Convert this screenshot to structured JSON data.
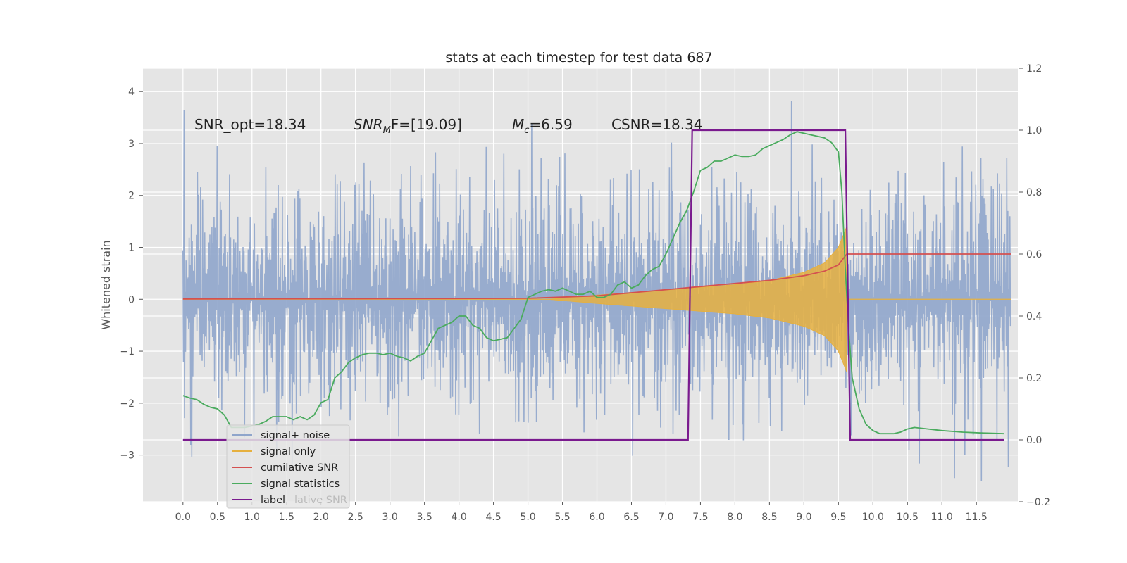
{
  "chart_data": {
    "type": "line",
    "title": "stats at each timestep for test data 687",
    "xlabel": "",
    "ylabel": "Whitened strain",
    "xlim": [
      -0.58,
      12.1
    ],
    "ylim": [
      -3.9,
      4.45
    ],
    "y2lim": [
      -0.2,
      1.2
    ],
    "grid": true,
    "background": "#e5e5e5",
    "x_ticks": [
      "0.0",
      "0.5",
      "1.0",
      "1.5",
      "2.0",
      "2.5",
      "3.0",
      "3.5",
      "4.0",
      "4.5",
      "5.0",
      "5.5",
      "6.0",
      "6.5",
      "7.0",
      "7.5",
      "8.0",
      "8.5",
      "9.0",
      "9.5",
      "10.0",
      "10.5",
      "11.0",
      "11.5"
    ],
    "y_ticks": [
      "4",
      "3",
      "2",
      "1",
      "0",
      "−1",
      "−2",
      "−3"
    ],
    "y2_ticks": [
      "1.2",
      "1.0",
      "0.8",
      "0.6",
      "0.4",
      "0.2",
      "0.0",
      "−0.2"
    ],
    "annotations": {
      "snr_opt": "SNR_opt=18.34",
      "snr_mf_base": "SNR",
      "snr_mf_sub": "M",
      "snr_mf_rest": "F=[19.09]",
      "mc_base": "M",
      "mc_sub": "c",
      "mc_rest": "=6.59",
      "csnr": "CSNR=18.34"
    },
    "series": [
      {
        "name": "signal+ noise",
        "axis": "left",
        "color": "#8fa5cb",
        "description_values": "gaussian noise, amplitude ~1, x from 0.0 to 12.0",
        "x_range": [
          0.0,
          12.0
        ],
        "noise_sigma": 1.0
      },
      {
        "name": "signal only",
        "axis": "left",
        "color": "#e6b03f",
        "chirp_start": 5.3,
        "chirp_end": 9.62,
        "envelope": [
          [
            5.3,
            0.0
          ],
          [
            6.0,
            0.08
          ],
          [
            7.0,
            0.18
          ],
          [
            8.0,
            0.28
          ],
          [
            8.5,
            0.36
          ],
          [
            9.0,
            0.52
          ],
          [
            9.3,
            0.7
          ],
          [
            9.5,
            1.0
          ],
          [
            9.62,
            1.4
          ]
        ]
      },
      {
        "name": "cumilative SNR",
        "axis": "right",
        "color": "#d45050",
        "points": [
          [
            0.0,
            0.455
          ],
          [
            3.0,
            0.456
          ],
          [
            5.0,
            0.457
          ],
          [
            6.0,
            0.465
          ],
          [
            6.5,
            0.475
          ],
          [
            7.0,
            0.485
          ],
          [
            7.5,
            0.495
          ],
          [
            8.0,
            0.505
          ],
          [
            8.5,
            0.515
          ],
          [
            9.0,
            0.53
          ],
          [
            9.3,
            0.545
          ],
          [
            9.5,
            0.565
          ],
          [
            9.62,
            0.6
          ],
          [
            12.0,
            0.6
          ]
        ]
      },
      {
        "name": "signal statistics",
        "axis": "right",
        "color": "#4aab5e",
        "points": [
          [
            0.0,
            0.143
          ],
          [
            0.1,
            0.135
          ],
          [
            0.2,
            0.13
          ],
          [
            0.3,
            0.115
          ],
          [
            0.4,
            0.105
          ],
          [
            0.5,
            0.1
          ],
          [
            0.6,
            0.08
          ],
          [
            0.7,
            0.04
          ],
          [
            0.8,
            0.04
          ],
          [
            0.9,
            0.04
          ],
          [
            1.0,
            0.045
          ],
          [
            1.1,
            0.05
          ],
          [
            1.2,
            0.06
          ],
          [
            1.3,
            0.075
          ],
          [
            1.4,
            0.075
          ],
          [
            1.5,
            0.075
          ],
          [
            1.6,
            0.065
          ],
          [
            1.7,
            0.075
          ],
          [
            1.8,
            0.065
          ],
          [
            1.9,
            0.08
          ],
          [
            2.0,
            0.12
          ],
          [
            2.1,
            0.13
          ],
          [
            2.2,
            0.2
          ],
          [
            2.3,
            0.22
          ],
          [
            2.4,
            0.25
          ],
          [
            2.5,
            0.265
          ],
          [
            2.6,
            0.275
          ],
          [
            2.7,
            0.28
          ],
          [
            2.8,
            0.28
          ],
          [
            2.9,
            0.275
          ],
          [
            3.0,
            0.28
          ],
          [
            3.1,
            0.27
          ],
          [
            3.2,
            0.265
          ],
          [
            3.3,
            0.255
          ],
          [
            3.4,
            0.27
          ],
          [
            3.5,
            0.28
          ],
          [
            3.6,
            0.32
          ],
          [
            3.7,
            0.36
          ],
          [
            3.8,
            0.37
          ],
          [
            3.9,
            0.38
          ],
          [
            4.0,
            0.4
          ],
          [
            4.1,
            0.4
          ],
          [
            4.2,
            0.37
          ],
          [
            4.3,
            0.36
          ],
          [
            4.4,
            0.33
          ],
          [
            4.5,
            0.32
          ],
          [
            4.6,
            0.325
          ],
          [
            4.7,
            0.33
          ],
          [
            4.8,
            0.36
          ],
          [
            4.9,
            0.39
          ],
          [
            5.0,
            0.46
          ],
          [
            5.1,
            0.47
          ],
          [
            5.2,
            0.48
          ],
          [
            5.3,
            0.485
          ],
          [
            5.4,
            0.48
          ],
          [
            5.5,
            0.49
          ],
          [
            5.6,
            0.48
          ],
          [
            5.7,
            0.47
          ],
          [
            5.8,
            0.47
          ],
          [
            5.9,
            0.48
          ],
          [
            6.0,
            0.46
          ],
          [
            6.1,
            0.46
          ],
          [
            6.2,
            0.47
          ],
          [
            6.3,
            0.5
          ],
          [
            6.4,
            0.51
          ],
          [
            6.5,
            0.49
          ],
          [
            6.6,
            0.5
          ],
          [
            6.7,
            0.53
          ],
          [
            6.8,
            0.55
          ],
          [
            6.9,
            0.56
          ],
          [
            7.0,
            0.6
          ],
          [
            7.1,
            0.65
          ],
          [
            7.2,
            0.7
          ],
          [
            7.3,
            0.74
          ],
          [
            7.4,
            0.8
          ],
          [
            7.5,
            0.87
          ],
          [
            7.6,
            0.88
          ],
          [
            7.7,
            0.9
          ],
          [
            7.8,
            0.9
          ],
          [
            7.9,
            0.91
          ],
          [
            8.0,
            0.92
          ],
          [
            8.1,
            0.915
          ],
          [
            8.2,
            0.915
          ],
          [
            8.3,
            0.92
          ],
          [
            8.4,
            0.94
          ],
          [
            8.5,
            0.95
          ],
          [
            8.6,
            0.96
          ],
          [
            8.7,
            0.97
          ],
          [
            8.8,
            0.985
          ],
          [
            8.9,
            0.995
          ],
          [
            9.0,
            0.99
          ],
          [
            9.1,
            0.985
          ],
          [
            9.2,
            0.98
          ],
          [
            9.3,
            0.975
          ],
          [
            9.4,
            0.96
          ],
          [
            9.5,
            0.93
          ],
          [
            9.55,
            0.8
          ],
          [
            9.6,
            0.55
          ],
          [
            9.65,
            0.35
          ],
          [
            9.7,
            0.2
          ],
          [
            9.8,
            0.1
          ],
          [
            9.9,
            0.05
          ],
          [
            10.0,
            0.03
          ],
          [
            10.1,
            0.02
          ],
          [
            10.3,
            0.02
          ],
          [
            10.4,
            0.025
          ],
          [
            10.5,
            0.035
          ],
          [
            10.6,
            0.04
          ],
          [
            10.8,
            0.035
          ],
          [
            11.0,
            0.03
          ],
          [
            11.3,
            0.025
          ],
          [
            11.6,
            0.022
          ],
          [
            11.9,
            0.02
          ]
        ]
      },
      {
        "name": "label",
        "axis": "right",
        "color": "#7a1a8e",
        "points": [
          [
            0.0,
            0.0
          ],
          [
            7.32,
            0.0
          ],
          [
            7.38,
            1.0
          ],
          [
            9.6,
            1.0
          ],
          [
            9.67,
            0.0
          ],
          [
            11.9,
            0.0
          ]
        ]
      }
    ],
    "legend": {
      "placement": "lower-left",
      "entries": [
        "signal+ noise",
        "signal only",
        "cumilative SNR",
        "signal statistics",
        "label"
      ],
      "hidden_overlap_text": "lative SNR"
    }
  }
}
